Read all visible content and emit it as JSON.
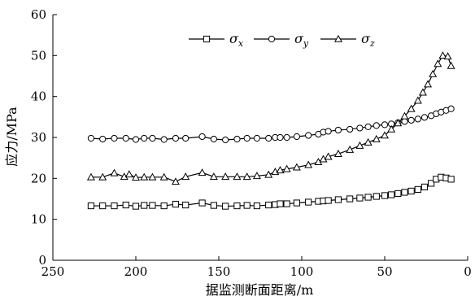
{
  "chart_data": {
    "type": "line",
    "xlabel": "据监测断面距离/m",
    "ylabel": "应力/MPa",
    "xlim": [
      250,
      0
    ],
    "ylim": [
      0,
      60
    ],
    "x_reversed": true,
    "xticks": [
      250,
      200,
      150,
      100,
      50,
      0
    ],
    "yticks": [
      0,
      10,
      20,
      30,
      40,
      50,
      60
    ],
    "grid": false,
    "legend_placement": "top-center",
    "series": [
      {
        "name": "σx",
        "marker": "square",
        "x": [
          227,
          220,
          213,
          206,
          200,
          195,
          190,
          183,
          176,
          170,
          160,
          153,
          146,
          139,
          133,
          127,
          120,
          116,
          113,
          109,
          103,
          96,
          90,
          87,
          84,
          78,
          71,
          65,
          60,
          55,
          50,
          46,
          42,
          38,
          34,
          30,
          26,
          22,
          19,
          16,
          13,
          10
        ],
        "y": [
          13.3,
          13.3,
          13.3,
          13.5,
          13.2,
          13.4,
          13.4,
          13.3,
          13.7,
          13.5,
          14.0,
          13.4,
          13.2,
          13.3,
          13.4,
          13.3,
          13.5,
          13.6,
          13.8,
          13.8,
          14.0,
          14.2,
          14.4,
          14.5,
          14.6,
          14.8,
          15.0,
          15.2,
          15.4,
          15.6,
          15.8,
          16.0,
          16.3,
          16.6,
          16.9,
          17.3,
          17.9,
          18.8,
          19.8,
          20.3,
          20.1,
          19.8
        ]
      },
      {
        "name": "σy",
        "marker": "circle",
        "x": [
          227,
          220,
          213,
          206,
          200,
          195,
          190,
          183,
          176,
          170,
          160,
          153,
          146,
          139,
          133,
          127,
          120,
          116,
          113,
          109,
          103,
          96,
          90,
          87,
          84,
          78,
          71,
          65,
          60,
          55,
          50,
          46,
          42,
          38,
          34,
          30,
          26,
          22,
          19,
          16,
          13,
          10
        ],
        "y": [
          29.8,
          29.6,
          29.8,
          29.8,
          29.5,
          29.8,
          29.8,
          29.5,
          29.8,
          29.8,
          30.2,
          29.6,
          29.4,
          29.6,
          29.8,
          29.8,
          29.8,
          30.0,
          30.0,
          30.0,
          30.2,
          30.5,
          30.8,
          31.3,
          31.5,
          31.8,
          32.0,
          32.3,
          32.6,
          32.9,
          33.1,
          33.3,
          33.6,
          33.9,
          34.2,
          34.5,
          34.9,
          35.3,
          35.8,
          36.2,
          36.6,
          37.0
        ]
      },
      {
        "name": "σz",
        "marker": "triangle",
        "x": [
          227,
          220,
          213,
          207,
          204,
          200,
          195,
          190,
          183,
          176,
          170,
          160,
          153,
          146,
          139,
          133,
          127,
          120,
          116,
          113,
          109,
          103,
          96,
          90,
          87,
          84,
          78,
          71,
          65,
          60,
          55,
          50,
          46,
          42,
          38,
          34,
          30,
          27,
          24,
          21,
          18,
          15,
          12,
          10
        ],
        "y": [
          20.3,
          20.3,
          21.3,
          20.4,
          21.0,
          20.2,
          20.3,
          20.3,
          20.3,
          19.2,
          20.4,
          21.4,
          20.4,
          20.4,
          20.4,
          20.4,
          20.6,
          20.9,
          21.6,
          22.0,
          22.3,
          22.7,
          23.3,
          24.0,
          24.7,
          25.3,
          26.0,
          27.0,
          28.0,
          28.8,
          29.6,
          30.5,
          32.0,
          33.5,
          35.2,
          37.0,
          39.0,
          41.0,
          43.0,
          45.5,
          48.0,
          50.0,
          49.8,
          47.5
        ]
      }
    ]
  }
}
